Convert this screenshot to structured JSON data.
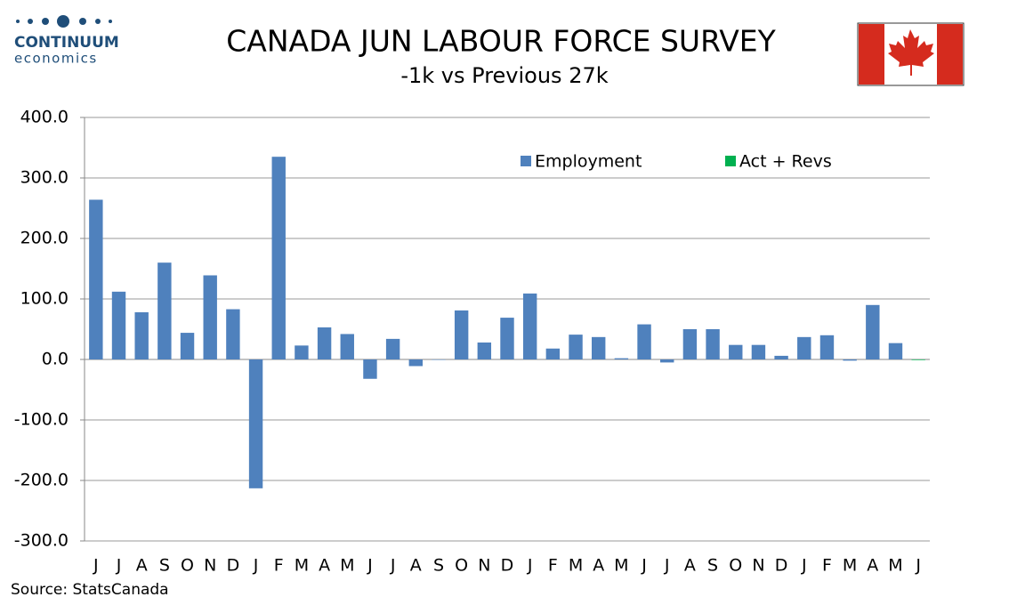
{
  "brand": {
    "name": "CONTINUUM",
    "tagline": "economics"
  },
  "source": "Source: StatsCanada",
  "chart_data": {
    "type": "bar",
    "title": "CANADA JUN LABOUR FORCE SURVEY",
    "subtitle": "-1k vs Previous 27k",
    "categories": [
      "J",
      "J",
      "A",
      "S",
      "O",
      "N",
      "D",
      "J",
      "F",
      "M",
      "A",
      "M",
      "J",
      "J",
      "A",
      "S",
      "O",
      "N",
      "D",
      "J",
      "F",
      "M",
      "A",
      "M",
      "J",
      "J",
      "A",
      "S",
      "O",
      "N",
      "D",
      "J",
      "F",
      "M",
      "A",
      "M",
      "J"
    ],
    "series": [
      {
        "name": "Employment",
        "color": "#4f81bd",
        "values": [
          264,
          112,
          78,
          160,
          44,
          139,
          83,
          -213,
          335,
          23,
          53,
          42,
          -32,
          34,
          -11,
          0,
          81,
          28,
          69,
          109,
          18,
          41,
          37,
          2,
          58,
          -5,
          50,
          50,
          24,
          24,
          6,
          37,
          40,
          -2,
          90,
          27,
          null
        ]
      },
      {
        "name": "Act + Revs",
        "color": "#00b050",
        "values": [
          null,
          null,
          null,
          null,
          null,
          null,
          null,
          null,
          null,
          null,
          null,
          null,
          null,
          null,
          null,
          null,
          null,
          null,
          null,
          null,
          null,
          null,
          null,
          null,
          null,
          null,
          null,
          null,
          null,
          null,
          null,
          null,
          null,
          null,
          null,
          null,
          -1
        ]
      }
    ],
    "ylim": [
      -300,
      400
    ],
    "yticks": [
      {
        "value": -300,
        "label": "-300.0"
      },
      {
        "value": -200,
        "label": "-200.0"
      },
      {
        "value": -100,
        "label": "-100.0"
      },
      {
        "value": 0,
        "label": "0.0"
      },
      {
        "value": 100,
        "label": "100.0"
      },
      {
        "value": 200,
        "label": "200.0"
      },
      {
        "value": 300,
        "label": "300.0"
      },
      {
        "value": 400,
        "label": "400.0"
      }
    ],
    "grid": true,
    "legend": "top-right"
  }
}
